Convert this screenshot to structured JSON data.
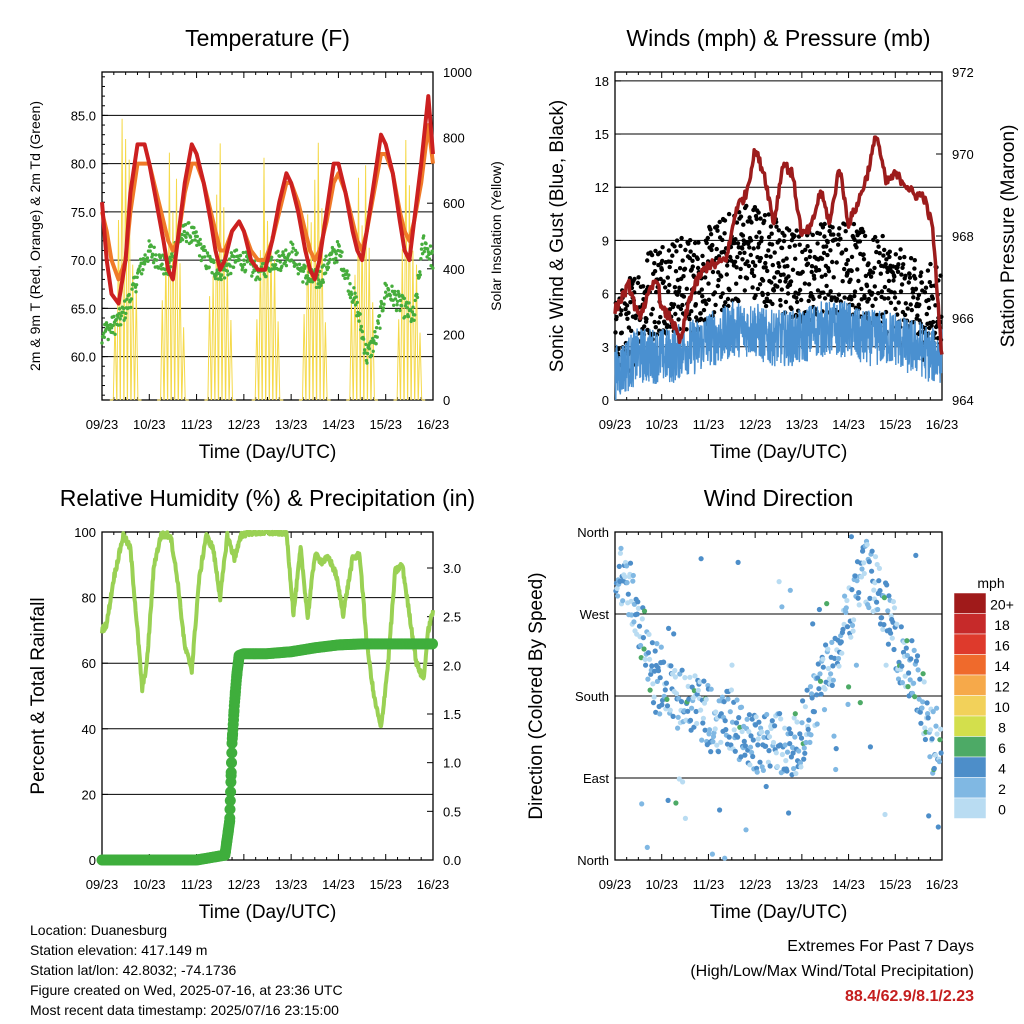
{
  "colors": {
    "temp_2m": "#cc2020",
    "temp_9m": "#f07a28",
    "dewpoint": "#46ad3c",
    "solar": "#f5d94a",
    "wind_speed": "#4a90d0",
    "gust": "#000000",
    "pressure": "#9c1c1c",
    "rh": "#9ad154",
    "rain": "#3fae3c",
    "extremes": "#c41e1e"
  },
  "time_ticks": [
    "09/23",
    "10/23",
    "11/23",
    "12/23",
    "13/23",
    "14/23",
    "15/23",
    "16/23"
  ],
  "chart_data": [
    {
      "id": "temperature",
      "type": "line",
      "title": "Temperature (F)",
      "xlabel": "Time (Day/UTC)",
      "ylabel": "2m & 9m T (Red, Orange) & 2m Td (Green)",
      "y2label": "Solar Insolation (Yellow)",
      "xlim": [
        0,
        7
      ],
      "ylim": [
        55.5,
        89.5
      ],
      "y2lim": [
        0,
        1000
      ],
      "yticks": [
        "60.0",
        "65.0",
        "70.0",
        "75.0",
        "80.0",
        "85.0"
      ],
      "y2ticks": [
        "0",
        "200",
        "400",
        "600",
        "800",
        "1000"
      ],
      "series": [
        {
          "name": "2m T",
          "x": [
            0,
            0.1,
            0.2,
            0.35,
            0.5,
            0.6,
            0.75,
            0.9,
            1.0,
            1.15,
            1.3,
            1.4,
            1.5,
            1.6,
            1.75,
            1.9,
            2.0,
            2.15,
            2.3,
            2.4,
            2.5,
            2.6,
            2.75,
            2.9,
            3.0,
            3.15,
            3.3,
            3.45,
            3.6,
            3.75,
            3.9,
            4.0,
            4.15,
            4.3,
            4.4,
            4.5,
            4.6,
            4.75,
            4.9,
            5.0,
            5.15,
            5.3,
            5.4,
            5.5,
            5.6,
            5.75,
            5.9,
            6.0,
            6.15,
            6.3,
            6.4,
            6.5,
            6.6,
            6.75,
            6.9,
            7.0
          ],
          "y": [
            76,
            70,
            66.5,
            65.5,
            70,
            77,
            82,
            82,
            80,
            76,
            72,
            69,
            68,
            72,
            78,
            82,
            81,
            78,
            74,
            71,
            69,
            70,
            73,
            74,
            73,
            70,
            69,
            69,
            72,
            76,
            79,
            78,
            75,
            71,
            69,
            68,
            70,
            75,
            80,
            80,
            77,
            73,
            71,
            70,
            73,
            78,
            83,
            82,
            79,
            74,
            71,
            70,
            74,
            80,
            87,
            81
          ]
        },
        {
          "name": "9m T",
          "x": [
            0,
            0.1,
            0.2,
            0.35,
            0.5,
            0.6,
            0.75,
            0.9,
            1.0,
            1.15,
            1.3,
            1.4,
            1.5,
            1.6,
            1.75,
            1.9,
            2.0,
            2.15,
            2.3,
            2.4,
            2.5,
            2.6,
            2.75,
            2.9,
            3.0,
            3.15,
            3.3,
            3.45,
            3.6,
            3.75,
            3.9,
            4.0,
            4.15,
            4.3,
            4.4,
            4.5,
            4.6,
            4.75,
            4.9,
            5.0,
            5.15,
            5.3,
            5.4,
            5.5,
            5.6,
            5.75,
            5.9,
            6.0,
            6.15,
            6.3,
            6.4,
            6.5,
            6.6,
            6.75,
            6.9,
            7.0
          ],
          "y": [
            75,
            73,
            70,
            68,
            70,
            75,
            80,
            80,
            80,
            77,
            74,
            72,
            71,
            72,
            77,
            80,
            80,
            78,
            75,
            73,
            71,
            71,
            73,
            74,
            73,
            71,
            70,
            70,
            72,
            75,
            78,
            78,
            76,
            73,
            71,
            70,
            71,
            74,
            78,
            79,
            77,
            74,
            72,
            71,
            73,
            77,
            81,
            81,
            79,
            75,
            73,
            72,
            74,
            78,
            84,
            80
          ]
        },
        {
          "name": "2m Td",
          "x": [
            0,
            0.2,
            0.4,
            0.6,
            0.8,
            1.0,
            1.2,
            1.4,
            1.6,
            1.8,
            2.0,
            2.2,
            2.4,
            2.6,
            2.8,
            3.0,
            3.2,
            3.4,
            3.6,
            3.8,
            4.0,
            4.2,
            4.4,
            4.6,
            4.8,
            5.0,
            5.2,
            5.4,
            5.6,
            5.8,
            6.0,
            6.2,
            6.4,
            6.6,
            6.8,
            7.0
          ],
          "y": [
            62.5,
            63,
            64,
            66,
            69,
            71,
            70,
            69,
            72,
            73,
            72,
            70,
            69,
            69,
            70,
            70,
            69,
            69,
            70,
            70,
            71,
            69,
            68,
            68,
            70,
            71,
            68,
            65,
            60,
            62,
            67,
            66,
            65,
            64,
            72,
            70
          ]
        },
        {
          "name": "Solar Insolation",
          "axis": "y2",
          "peaks_x": [
            0.5,
            1.5,
            2.5,
            3.5,
            4.5,
            5.5,
            6.5
          ],
          "peaks_y": [
            930,
            900,
            890,
            870,
            900,
            900,
            880
          ]
        }
      ]
    },
    {
      "id": "winds",
      "type": "scatter",
      "title": "Winds (mph) & Pressure (mb)",
      "xlabel": "Time (Day/UTC)",
      "ylabel": "Sonic Wind & Gust (Blue, Black)",
      "y2label": "Station Pressure (Maroon)",
      "xlim": [
        0,
        7
      ],
      "ylim": [
        0,
        18.5
      ],
      "y2lim": [
        964,
        972
      ],
      "yticks": [
        "0",
        "3",
        "6",
        "9",
        "12",
        "15",
        "18"
      ],
      "y2ticks": [
        "964",
        "966",
        "968",
        "970",
        "972"
      ],
      "series": [
        {
          "name": "Sonic Wind",
          "x": [
            0,
            0.25,
            0.5,
            0.75,
            1.0,
            1.25,
            1.5,
            1.75,
            2.0,
            2.25,
            2.5,
            2.75,
            3.0,
            3.25,
            3.5,
            3.75,
            4.0,
            4.25,
            4.5,
            4.75,
            5.0,
            5.25,
            5.5,
            5.75,
            6.0,
            6.25,
            6.5,
            6.75,
            7.0
          ],
          "y": [
            1.5,
            2,
            2.5,
            2.5,
            2.5,
            2.5,
            3,
            3,
            3.5,
            3.5,
            4,
            4,
            4,
            3.5,
            3.5,
            3.5,
            3.5,
            4,
            4,
            4,
            4,
            3.5,
            3.5,
            3.5,
            3.5,
            3,
            3,
            2.5,
            2.5
          ]
        },
        {
          "name": "Gust",
          "x": [
            0,
            0.25,
            0.5,
            0.75,
            1.0,
            1.25,
            1.5,
            1.75,
            2.0,
            2.25,
            2.5,
            2.75,
            3.0,
            3.25,
            3.5,
            3.75,
            4.0,
            4.25,
            4.5,
            4.75,
            5.0,
            5.25,
            5.5,
            5.75,
            6.0,
            6.25,
            6.5,
            6.75,
            7.0
          ],
          "y": [
            3,
            4,
            5,
            6,
            6.5,
            6.5,
            6.5,
            6.5,
            7,
            7.5,
            8,
            8.5,
            8.5,
            8,
            7.5,
            7,
            7,
            7,
            7.5,
            7.5,
            7.5,
            7,
            6.5,
            6.5,
            6,
            5.5,
            5,
            5,
            5
          ]
        },
        {
          "name": "Station Pressure",
          "axis": "y2",
          "x": [
            0,
            0.3,
            0.5,
            0.7,
            0.9,
            1.0,
            1.2,
            1.4,
            1.6,
            1.8,
            2.0,
            2.2,
            2.4,
            2.6,
            2.8,
            3.0,
            3.2,
            3.4,
            3.6,
            3.8,
            4.0,
            4.2,
            4.4,
            4.6,
            4.8,
            5.0,
            5.2,
            5.4,
            5.6,
            5.8,
            6.0,
            6.2,
            6.4,
            6.6,
            6.8,
            7.0
          ],
          "y": [
            966.2,
            966.8,
            966,
            966.5,
            967,
            966.2,
            966,
            965.4,
            966.5,
            967,
            967.3,
            967.3,
            967.5,
            968.7,
            969,
            970.1,
            969.5,
            968.3,
            969.8,
            969.5,
            968,
            968.2,
            969.1,
            968.3,
            969.7,
            968.3,
            968.8,
            969.5,
            970.5,
            969.3,
            969.5,
            969.3,
            969,
            969,
            968.2,
            965
          ]
        }
      ]
    },
    {
      "id": "humidity",
      "type": "line",
      "title": "Relative Humidity (%) & Precipitation (in)",
      "xlabel": "Time (Day/UTC)",
      "ylabel": "Percent & Total Rainfall",
      "xlim": [
        0,
        7
      ],
      "ylim": [
        0,
        100
      ],
      "y2lim": [
        0,
        3.37
      ],
      "yticks": [
        "0",
        "20",
        "40",
        "60",
        "80",
        "100"
      ],
      "y2ticks": [
        "0.0",
        "0.5",
        "1.0",
        "1.5",
        "2.0",
        "2.5",
        "3.0"
      ],
      "series": [
        {
          "name": "Relative Humidity",
          "x": [
            0,
            0.1,
            0.25,
            0.45,
            0.6,
            0.75,
            0.85,
            0.95,
            1.1,
            1.25,
            1.45,
            1.6,
            1.75,
            1.9,
            2.05,
            2.2,
            2.35,
            2.5,
            2.65,
            2.8,
            2.95,
            3.1,
            3.3,
            3.5,
            3.7,
            3.9,
            4.05,
            4.2,
            4.35,
            4.5,
            4.65,
            4.8,
            4.95,
            5.1,
            5.3,
            5.45,
            5.6,
            5.75,
            5.9,
            6.05,
            6.2,
            6.35,
            6.5,
            6.65,
            6.8,
            6.9,
            7.0
          ],
          "y": [
            70,
            72,
            86,
            99,
            95,
            70,
            52,
            60,
            90,
            99,
            99,
            85,
            65,
            58,
            85,
            99,
            95,
            80,
            99,
            92,
            99,
            100,
            100,
            100,
            100,
            100,
            75,
            95,
            74,
            93,
            91,
            92,
            87,
            75,
            92,
            93,
            66,
            50,
            40,
            60,
            88,
            90,
            75,
            60,
            55,
            70,
            76
          ]
        },
        {
          "name": "Total Rainfall",
          "axis": "y2",
          "x": [
            0,
            0.5,
            1.0,
            1.5,
            2.0,
            2.6,
            2.7,
            2.72,
            2.75,
            2.8,
            2.85,
            2.9,
            3.0,
            3.2,
            3.5,
            4.0,
            4.5,
            5.0,
            5.5,
            6.0,
            6.5,
            7.0
          ],
          "y": [
            0,
            0,
            0,
            0,
            0,
            0.05,
            0.4,
            0.7,
            1.2,
            1.6,
            1.9,
            2.1,
            2.12,
            2.12,
            2.12,
            2.14,
            2.18,
            2.21,
            2.22,
            2.22,
            2.22,
            2.22
          ]
        }
      ]
    },
    {
      "id": "direction",
      "type": "scatter",
      "title": "Wind Direction",
      "xlabel": "Time (Day/UTC)",
      "ylabel": "Direction (Colored By Speed)",
      "xlim": [
        0,
        7
      ],
      "ylim": [
        0,
        360
      ],
      "ytick_labels": [
        "North",
        "East",
        "South",
        "West",
        "North"
      ],
      "legend": {
        "title": "mph",
        "labels": [
          "20+",
          "18",
          "16",
          "14",
          "12",
          "10",
          "8",
          "6",
          "4",
          "2",
          "0"
        ],
        "colors": [
          "#a01a1a",
          "#c62a2a",
          "#de3a2c",
          "#ef6a2c",
          "#f6a94a",
          "#f2d15a",
          "#d3df4c",
          "#4daa66",
          "#4d8ec9",
          "#80b8e3",
          "#b9dcf2"
        ]
      },
      "series": [
        {
          "name": "Direction",
          "x": [
            0,
            0.3,
            0.6,
            0.9,
            1.2,
            1.5,
            1.8,
            2.1,
            2.4,
            2.7,
            3.0,
            3.3,
            3.6,
            3.9,
            4.2,
            4.5,
            4.8,
            5.0,
            5.3,
            5.6,
            5.9,
            6.2,
            6.5,
            6.8,
            7.0
          ],
          "y": [
            320,
            300,
            250,
            190,
            180,
            175,
            170,
            150,
            160,
            140,
            130,
            135,
            130,
            125,
            165,
            200,
            240,
            270,
            320,
            300,
            260,
            210,
            190,
            130,
            140
          ]
        }
      ]
    }
  ],
  "meta": {
    "location": "Location: Duanesburg",
    "elevation": "Station elevation: 417.149 m",
    "latlon": "Station lat/lon: 42.8032; -74.1736",
    "created": "Figure created on Wed, 2025-07-16, at 23:36 UTC",
    "latest": "Most recent data timestamp: 2025/07/16 23:15:00"
  },
  "extremes": {
    "title": "Extremes For Past 7 Days",
    "subtitle": "(High/Low/Max Wind/Total Precipitation)",
    "values": "88.4/62.9/8.1/2.23"
  }
}
